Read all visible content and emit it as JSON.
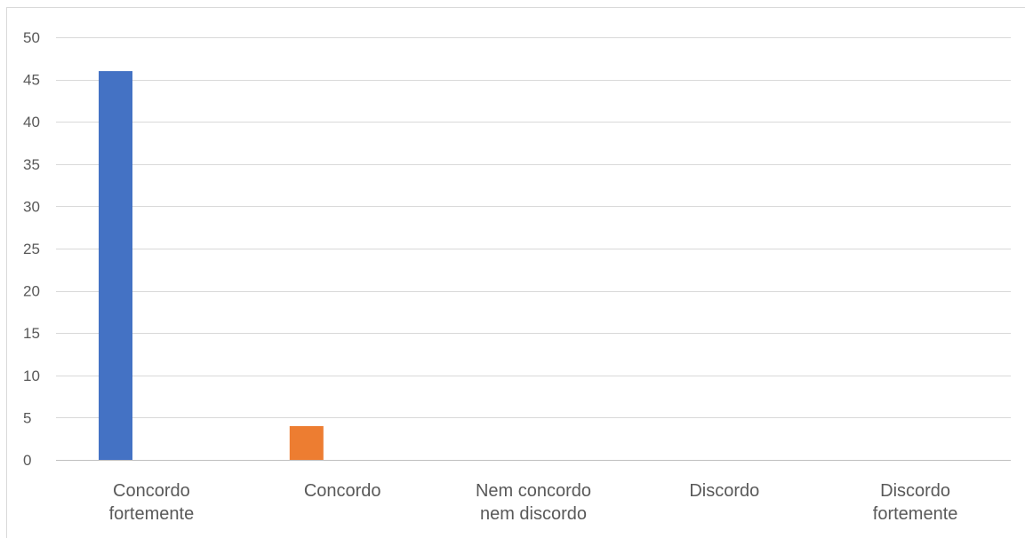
{
  "chart_data": {
    "type": "bar",
    "title": "",
    "xlabel": "",
    "ylabel": "",
    "ylim": [
      0,
      50
    ],
    "y_ticks": [
      0,
      5,
      10,
      15,
      20,
      25,
      30,
      35,
      40,
      45,
      50
    ],
    "grid": true,
    "legend": "none",
    "categories": [
      [
        "Concordo",
        "fortemente"
      ],
      [
        "Concordo"
      ],
      [
        "Nem concordo",
        "nem discordo"
      ],
      [
        "Discordo"
      ],
      [
        "Discordo",
        "fortemente"
      ]
    ],
    "values": [
      46,
      4,
      0,
      0,
      0
    ],
    "colors": [
      "#4472C4",
      "#ED7D31",
      "#A5A5A5",
      "#FFC000",
      "#5B9BD5"
    ],
    "gridline_color": "#d9d9d9",
    "axis_color": "#bfbfbf"
  }
}
